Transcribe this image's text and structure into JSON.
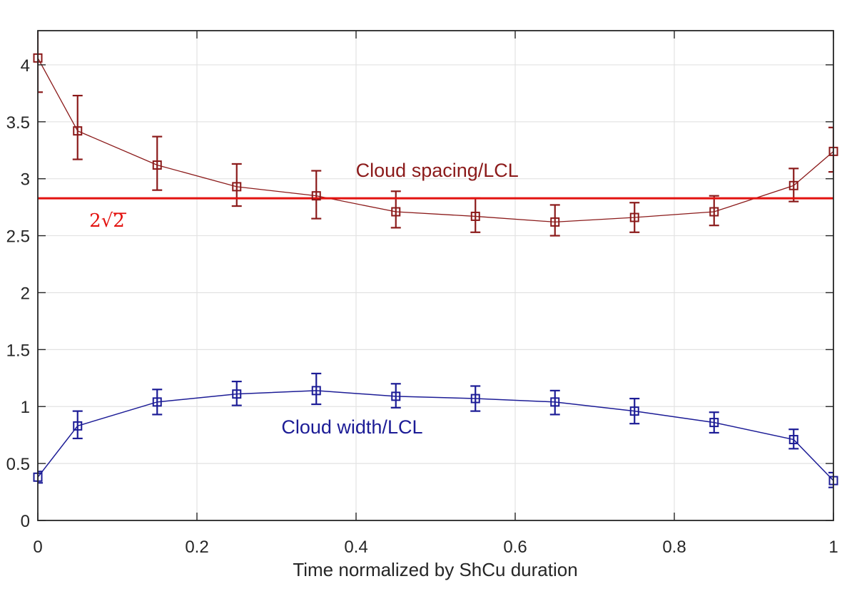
{
  "figure": {
    "background": "#ffffff",
    "title": ""
  },
  "chart_data": {
    "type": "line",
    "title": "",
    "xlabel": "Time normalized by ShCu duration",
    "ylabel": "",
    "xlim": [
      0,
      1
    ],
    "ylim": [
      0,
      4.3
    ],
    "grid": true,
    "legend_position": "none",
    "axis_color": "#262626",
    "grid_color": "#E2E2E2",
    "x_ticks": [
      0,
      0.2,
      0.4,
      0.6,
      0.8,
      1
    ],
    "x_tick_labels": [
      "0",
      "0.2",
      "0.4",
      "0.6",
      "0.8",
      "1"
    ],
    "y_ticks": [
      0,
      0.5,
      1,
      1.5,
      2,
      2.5,
      3,
      3.5,
      4
    ],
    "y_tick_labels": [
      "0",
      "0.5",
      "1",
      "1.5",
      "2",
      "2.5",
      "3",
      "3.5",
      "4"
    ],
    "x": [
      0,
      0.05,
      0.15,
      0.25,
      0.35,
      0.45,
      0.55,
      0.65,
      0.75,
      0.85,
      0.95,
      1.0
    ],
    "series": [
      {
        "name": "Cloud spacing/LCL",
        "color": "#8B1A1A",
        "values": [
          4.06,
          3.42,
          3.12,
          2.93,
          2.85,
          2.71,
          2.67,
          2.62,
          2.66,
          2.71,
          2.94,
          3.24
        ],
        "err_up": [
          0.31,
          0.31,
          0.25,
          0.2,
          0.22,
          0.18,
          0.16,
          0.15,
          0.13,
          0.14,
          0.15,
          0.21
        ],
        "err_down": [
          0.3,
          0.25,
          0.22,
          0.17,
          0.2,
          0.14,
          0.14,
          0.12,
          0.13,
          0.12,
          0.14,
          0.18
        ],
        "label_pos": {
          "x": 0.502,
          "y": 3.08
        }
      },
      {
        "name": "Cloud width/LCL",
        "color": "#1C1C96",
        "values": [
          0.38,
          0.83,
          1.04,
          1.11,
          1.14,
          1.09,
          1.07,
          1.04,
          0.96,
          0.86,
          0.71,
          0.35
        ],
        "err_up": [
          0.05,
          0.13,
          0.11,
          0.11,
          0.15,
          0.11,
          0.11,
          0.1,
          0.11,
          0.09,
          0.09,
          0.07
        ],
        "err_down": [
          0.05,
          0.11,
          0.11,
          0.1,
          0.12,
          0.1,
          0.11,
          0.11,
          0.11,
          0.09,
          0.08,
          0.06
        ]
      }
    ],
    "annotations": [
      {
        "id": "width-label",
        "text": "Cloud width/LCL",
        "color": "#1C1C96",
        "pos": {
          "x": 0.395,
          "y": 0.825
        }
      }
    ],
    "reference_line": {
      "value": 2.8284,
      "label": "2√2",
      "color": "#E3120F",
      "label_pos": {
        "x": 0.087,
        "y": 2.64
      }
    }
  }
}
